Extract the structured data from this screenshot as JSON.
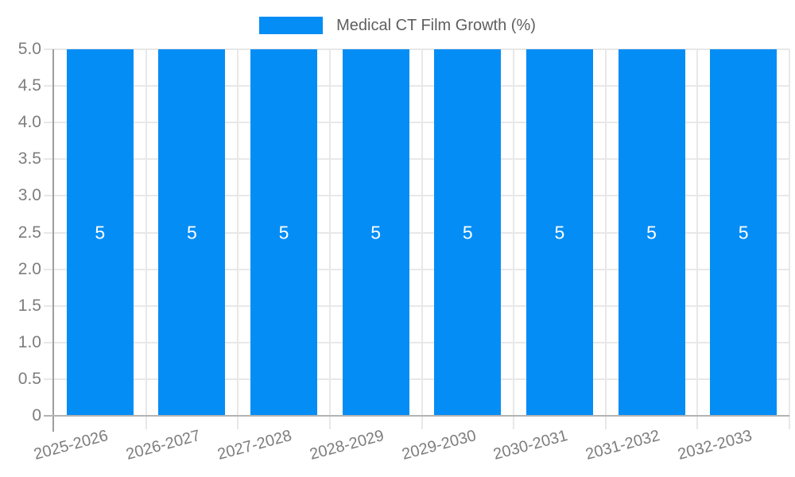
{
  "chart_data": {
    "type": "bar",
    "title": "Medical CT Film Growth (%)",
    "legend_position": "top-center",
    "categories": [
      "2025-2026",
      "2026-2027",
      "2027-2028",
      "2028-2029",
      "2029-2030",
      "2030-2031",
      "2031-2032",
      "2032-2033"
    ],
    "series": [
      {
        "name": "Medical CT Film Growth (%)",
        "color": "#058DF6",
        "values": [
          5,
          5,
          5,
          5,
          5,
          5,
          5,
          5
        ]
      }
    ],
    "value_labels": [
      "5",
      "5",
      "5",
      "5",
      "5",
      "5",
      "5",
      "5"
    ],
    "xlabel": "",
    "ylabel": "",
    "ylim": [
      0,
      5
    ],
    "ytick_step": 0.5,
    "yticks": [
      {
        "value": 5,
        "label": "5.0"
      },
      {
        "value": 4.5,
        "label": "4.5"
      },
      {
        "value": 4,
        "label": "4.0"
      },
      {
        "value": 3.5,
        "label": "3.5"
      },
      {
        "value": 3,
        "label": "3.0"
      },
      {
        "value": 2.5,
        "label": "2.5"
      },
      {
        "value": 2,
        "label": "2.0"
      },
      {
        "value": 1.5,
        "label": "1.5"
      },
      {
        "value": 1,
        "label": "1.0"
      },
      {
        "value": 0.5,
        "label": "0.5"
      },
      {
        "value": 0,
        "label": "0"
      }
    ],
    "grid": true,
    "x_label_rotation_deg": -15
  },
  "style": {
    "background": "#ffffff",
    "bar_color": "#058DF6",
    "gridline_color": "#e8e8e8",
    "axis_line_color": "#9e9e9e",
    "baseline_color": "#b3b3b3",
    "tick_label_color": "#7d7d7d",
    "legend_text_color": "#5f5f5f",
    "value_label_color": "#ffffff"
  }
}
